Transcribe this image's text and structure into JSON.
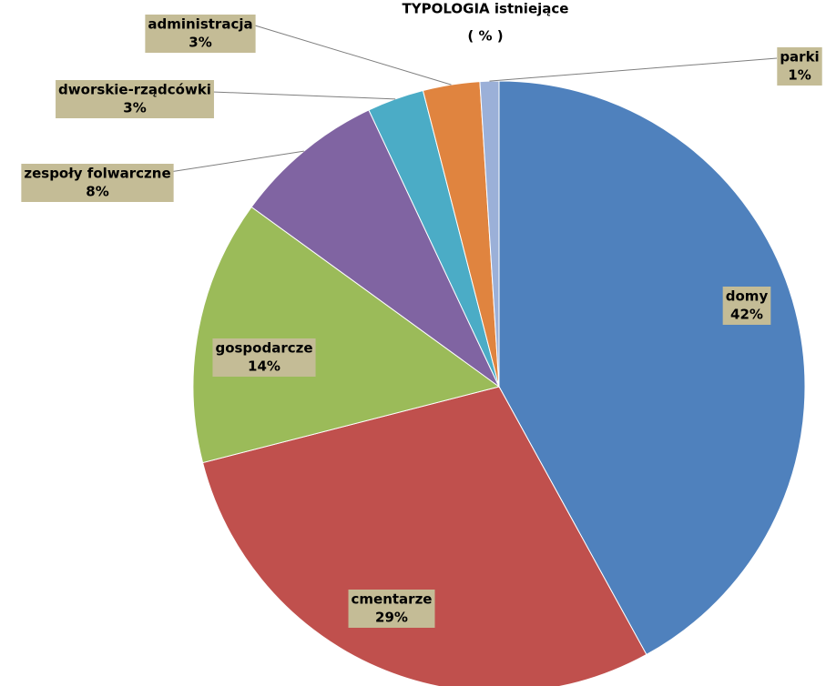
{
  "chart_data": {
    "type": "pie",
    "title": "TYPOLOGIA istniejące",
    "subtitle": "( % )",
    "categories": [
      "domy",
      "cmentarze",
      "gospodarcze",
      "zespoły folwarczne",
      "dworskie-rządcówki",
      "administracja",
      "parki"
    ],
    "values": [
      42,
      29,
      14,
      8,
      3,
      3,
      1
    ],
    "value_labels": [
      "42%",
      "29%",
      "14%",
      "8%",
      "3%",
      "3%",
      "1%"
    ],
    "colors": [
      "#4f81bd",
      "#c0504d",
      "#9bbb59",
      "#8064a2",
      "#4bacc6",
      "#e0843f",
      "#9bb0d8"
    ]
  }
}
